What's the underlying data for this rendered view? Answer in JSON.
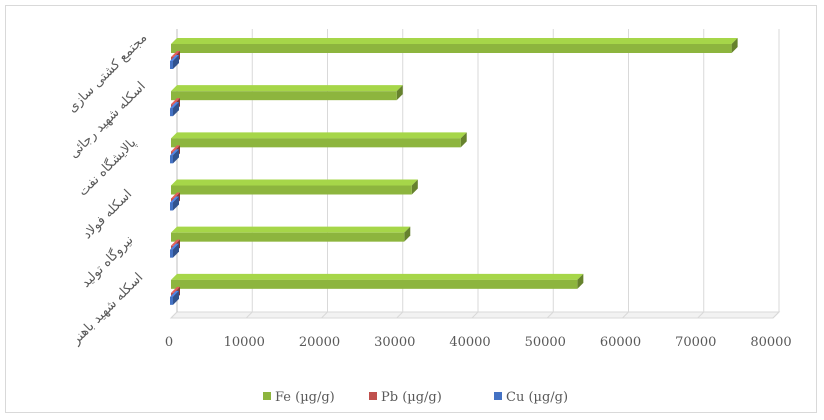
{
  "chart_data": {
    "type": "bar",
    "orientation": "horizontal",
    "style": "3d-clustered",
    "categories": [
      "اسکله شهید باهنر",
      "نیروگاه تولید",
      "اسکله فولاد",
      "پالایشگاه نفت",
      "اسکله شهید رجائی",
      "مجتمع کشتی سازی"
    ],
    "series": [
      {
        "name": "Cu (µg/g)",
        "color": "#4472c4",
        "values": [
          30,
          20,
          25,
          25,
          20,
          30
        ]
      },
      {
        "name": "Pb (µg/g)",
        "color": "#c0504d",
        "values": [
          60,
          50,
          60,
          55,
          50,
          60
        ]
      },
      {
        "name": "Fe (µg/g)",
        "color": "#8db53e",
        "values": [
          54000,
          31000,
          32000,
          38500,
          30000,
          74500
        ]
      }
    ],
    "xlim": [
      0,
      80000
    ],
    "ticks": [
      "0",
      "10000",
      "20000",
      "30000",
      "40000",
      "50000",
      "60000",
      "70000",
      "80000"
    ],
    "grid": true,
    "legend_position": "bottom",
    "legend": [
      "Fe (µg/g)",
      "Pb (µg/g)",
      "Cu (µg/g)"
    ]
  }
}
